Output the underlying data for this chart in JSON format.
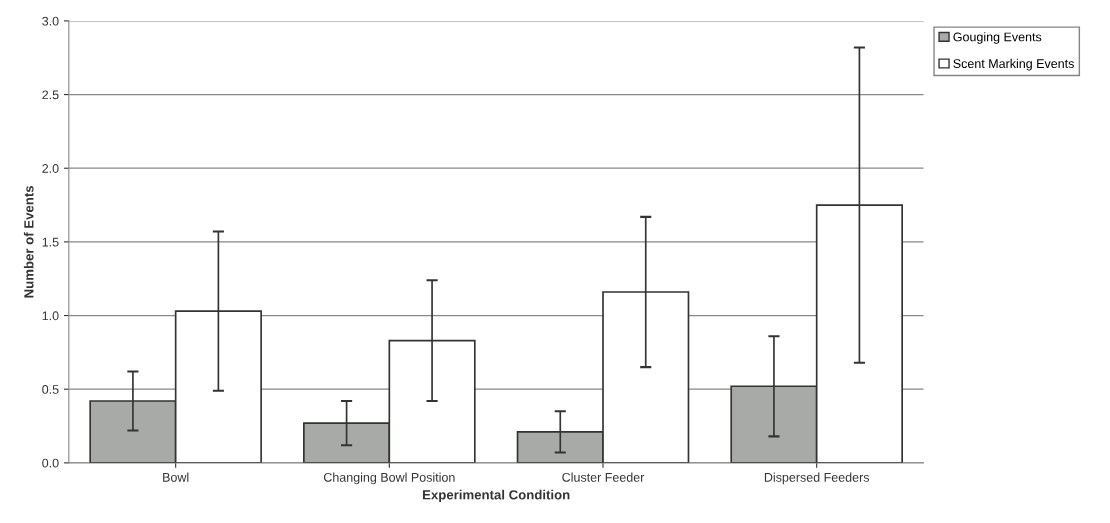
{
  "chart_data": {
    "type": "bar",
    "xlabel": "Experimental Condition",
    "ylabel": "Number of Events",
    "categories": [
      "Bowl",
      "Changing Bowl Position",
      "Cluster Feeder",
      "Dispersed Feeders"
    ],
    "series": [
      {
        "name": "Gouging Events",
        "color": "#a8aaa8",
        "values": [
          0.42,
          0.27,
          0.21,
          0.52
        ],
        "errors": [
          0.2,
          0.15,
          0.14,
          0.34
        ]
      },
      {
        "name": "Scent Marking Events",
        "color": "#ffffff",
        "values": [
          1.03,
          0.83,
          1.16,
          1.75
        ],
        "errors": [
          0.54,
          0.41,
          0.51,
          1.07
        ]
      }
    ],
    "ylim": [
      0,
      3
    ],
    "yticks": [
      {
        "value": 0,
        "label": "0.0"
      },
      {
        "value": 0.5,
        "label": "0.5"
      },
      {
        "value": 1,
        "label": "1.0"
      },
      {
        "value": 1.5,
        "label": "1.5"
      },
      {
        "value": 2,
        "label": "2.0"
      },
      {
        "value": 2.5,
        "label": "2.5"
      },
      {
        "value": 3,
        "label": "3.0"
      }
    ],
    "grid": "y",
    "legend": "top right"
  }
}
